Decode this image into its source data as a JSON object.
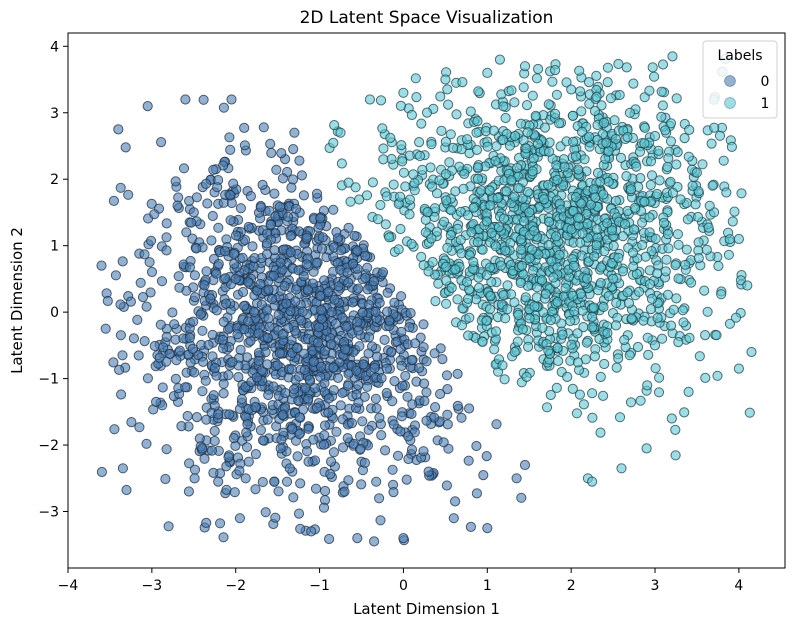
{
  "chart_data": {
    "type": "scatter",
    "title": "2D Latent Space Visualization",
    "xlabel": "Latent Dimension 1",
    "ylabel": "Latent Dimension 2",
    "xlim": [
      -4,
      4.55
    ],
    "ylim": [
      -3.85,
      4.2
    ],
    "xticks": [
      -4,
      -3,
      -2,
      -1,
      0,
      1,
      2,
      3,
      4
    ],
    "yticks": [
      -3,
      -2,
      -1,
      0,
      1,
      2,
      3,
      4
    ],
    "xtick_labels": [
      "−4",
      "−3",
      "−2",
      "−1",
      "0",
      "1",
      "2",
      "3",
      "4"
    ],
    "ytick_labels": [
      "−3",
      "−2",
      "−1",
      "0",
      "1",
      "2",
      "3",
      "4"
    ],
    "grid": false,
    "legend": {
      "title": "Labels",
      "placement": "top-right"
    },
    "series": [
      {
        "name": "0",
        "color": "#4a7fb5",
        "edge_color": "#1f2f40",
        "alpha": 0.6,
        "region": "left lobe, centered near (-1.1, -0.2), bounded on the right by the diagonal from (-1.2, 2.2) to (1.5, -2.4)",
        "extent": {
          "x": [
            -3.6,
            1.5
          ],
          "y": [
            -3.45,
            3.25
          ]
        },
        "sample_points": [
          [
            -3.6,
            0.7
          ],
          [
            -3.55,
            -0.25
          ],
          [
            -3.4,
            2.75
          ],
          [
            -3.35,
            -0.65
          ],
          [
            -3.05,
            3.1
          ],
          [
            -2.95,
            -1.35
          ],
          [
            -2.6,
            3.2
          ],
          [
            -2.4,
            -2.05
          ],
          [
            -2.05,
            3.2
          ],
          [
            -1.95,
            -3.1
          ],
          [
            -1.3,
            2.7
          ],
          [
            -1.1,
            -3.3
          ],
          [
            -0.55,
            -3.4
          ],
          [
            -0.35,
            -3.45
          ],
          [
            0.0,
            -3.4
          ],
          [
            0.6,
            -3.1
          ],
          [
            1.0,
            -3.25
          ],
          [
            1.35,
            -2.5
          ],
          [
            1.45,
            -2.3
          ],
          [
            -2.0,
            0.5
          ],
          [
            -1.5,
            -0.8
          ],
          [
            -0.8,
            -1.8
          ],
          [
            0.3,
            -2.4
          ],
          [
            -2.5,
            1.5
          ],
          [
            -0.9,
            0.3
          ]
        ]
      },
      {
        "name": "1",
        "color": "#5cc8d6",
        "edge_color": "#1f3f45",
        "alpha": 0.6,
        "region": "right lobe, centered near (1.7, 1.3), bounded on the left by the diagonal from (-1.0, 2.2) to (2.3, -2.5)",
        "extent": {
          "x": [
            -0.9,
            4.15
          ],
          "y": [
            -2.55,
            3.85
          ]
        },
        "sample_points": [
          [
            -0.75,
            2.7
          ],
          [
            -0.4,
            3.2
          ],
          [
            0.0,
            3.3
          ],
          [
            0.5,
            3.5
          ],
          [
            1.0,
            3.6
          ],
          [
            1.15,
            3.8
          ],
          [
            1.45,
            3.7
          ],
          [
            2.0,
            3.35
          ],
          [
            2.7,
            3.0
          ],
          [
            3.0,
            2.65
          ],
          [
            3.5,
            2.1
          ],
          [
            3.85,
            1.8
          ],
          [
            4.0,
            1.1
          ],
          [
            4.1,
            0.4
          ],
          [
            4.15,
            -0.6
          ],
          [
            4.0,
            -0.85
          ],
          [
            3.4,
            -1.2
          ],
          [
            3.2,
            -1.6
          ],
          [
            2.9,
            -2.05
          ],
          [
            2.6,
            -2.35
          ],
          [
            2.2,
            -2.5
          ],
          [
            2.25,
            -2.55
          ],
          [
            1.5,
            1.5
          ],
          [
            2.5,
            0.5
          ],
          [
            3.0,
            -0.5
          ]
        ]
      }
    ]
  }
}
